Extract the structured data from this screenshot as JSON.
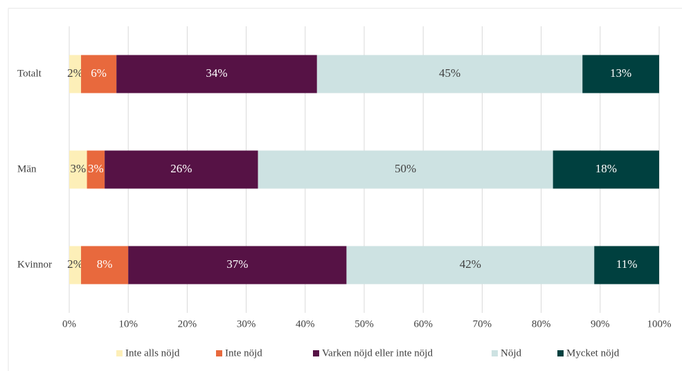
{
  "chart_data": {
    "type": "stacked_barh",
    "categories": [
      "Totalt",
      "Män",
      "Kvinnor"
    ],
    "series": [
      {
        "name": "Inte alls nöjd",
        "color": "#fdefb8",
        "values": [
          2,
          3,
          2
        ],
        "value_labels": [
          "2%",
          "3%",
          "2%"
        ]
      },
      {
        "name": "Inte nöjd",
        "color": "#e8693d",
        "values": [
          6,
          3,
          8
        ],
        "value_labels": [
          "6%",
          "3%",
          "8%"
        ]
      },
      {
        "name": "Varken nöjd eller inte nöjd",
        "color": "#561245",
        "values": [
          34,
          26,
          37
        ],
        "value_labels": [
          "34%",
          "26%",
          "37%"
        ]
      },
      {
        "name": "Nöjd",
        "color": "#cde2e2",
        "values": [
          45,
          50,
          42
        ],
        "value_labels": [
          "45%",
          "50%",
          "42%"
        ]
      },
      {
        "name": "Mycket nöjd",
        "color": "#00403f",
        "values": [
          13,
          18,
          11
        ],
        "value_labels": [
          "13%",
          "18%",
          "11%"
        ]
      }
    ],
    "xlim": [
      0,
      100
    ],
    "xticks": [
      {
        "value": 0,
        "label": "0%"
      },
      {
        "value": 10,
        "label": "10%"
      },
      {
        "value": 20,
        "label": "20%"
      },
      {
        "value": 30,
        "label": "30%"
      },
      {
        "value": 40,
        "label": "40%"
      },
      {
        "value": 50,
        "label": "50%"
      },
      {
        "value": 60,
        "label": "60%"
      },
      {
        "value": 70,
        "label": "70%"
      },
      {
        "value": 80,
        "label": "80%"
      },
      {
        "value": 90,
        "label": "90%"
      },
      {
        "value": 100,
        "label": "100%"
      }
    ],
    "grid": true,
    "legend": "bottom"
  }
}
